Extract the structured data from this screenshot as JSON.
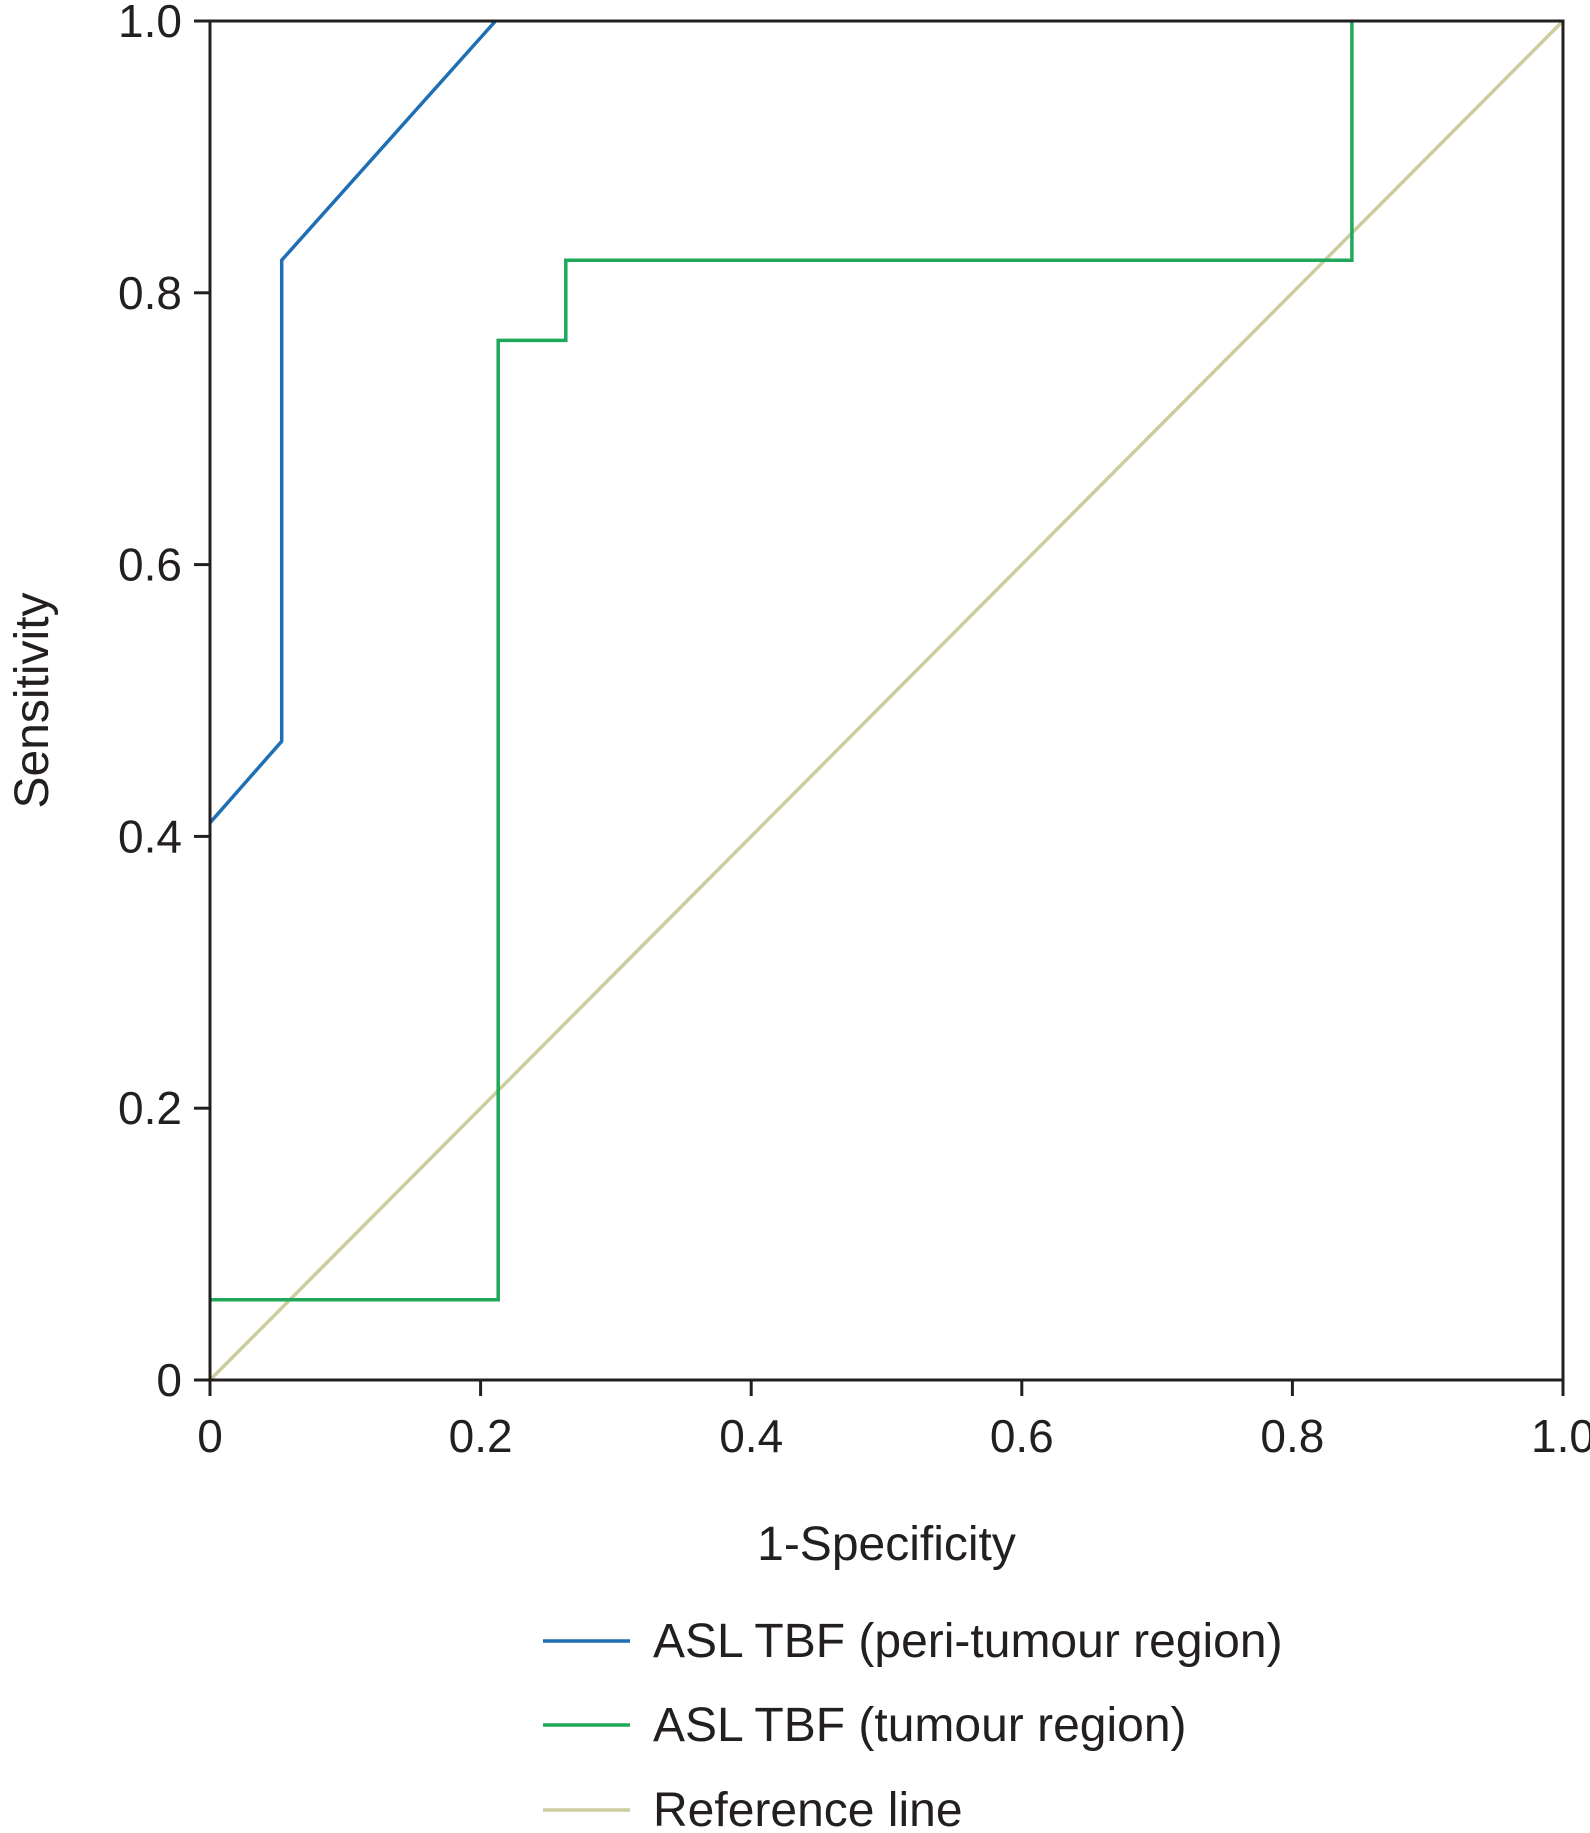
{
  "chart_data": {
    "type": "line",
    "title": "",
    "xlabel": "1-Specificity",
    "ylabel": "Sensitivity",
    "xlim": [
      0,
      1
    ],
    "ylim": [
      0,
      1
    ],
    "x_ticks": [
      "0",
      "0.2",
      "0.4",
      "0.6",
      "0.8",
      "1.0"
    ],
    "y_ticks": [
      "0",
      "0.2",
      "0.4",
      "0.6",
      "0.8",
      "1.0"
    ],
    "grid": false,
    "legend_position": "bottom",
    "series": [
      {
        "name": "ASL TBF (peri-tumour region)",
        "color": "#1f6fb5",
        "points": [
          [
            0,
            0.41
          ],
          [
            0.053,
            0.47
          ],
          [
            0.053,
            0.824
          ],
          [
            0.211,
            1.0
          ],
          [
            0.211,
            1.0
          ]
        ]
      },
      {
        "name": "ASL TBF (tumour region)",
        "color": "#1fa85a",
        "points": [
          [
            0,
            0.059
          ],
          [
            0.213,
            0.059
          ],
          [
            0.213,
            0.765
          ],
          [
            0.263,
            0.765
          ],
          [
            0.263,
            0.824
          ],
          [
            0.844,
            0.824
          ],
          [
            0.844,
            1.0
          ]
        ]
      },
      {
        "name": "Reference line",
        "color": "#cccc9e",
        "points": [
          [
            0,
            0
          ],
          [
            1,
            1
          ]
        ]
      }
    ]
  }
}
